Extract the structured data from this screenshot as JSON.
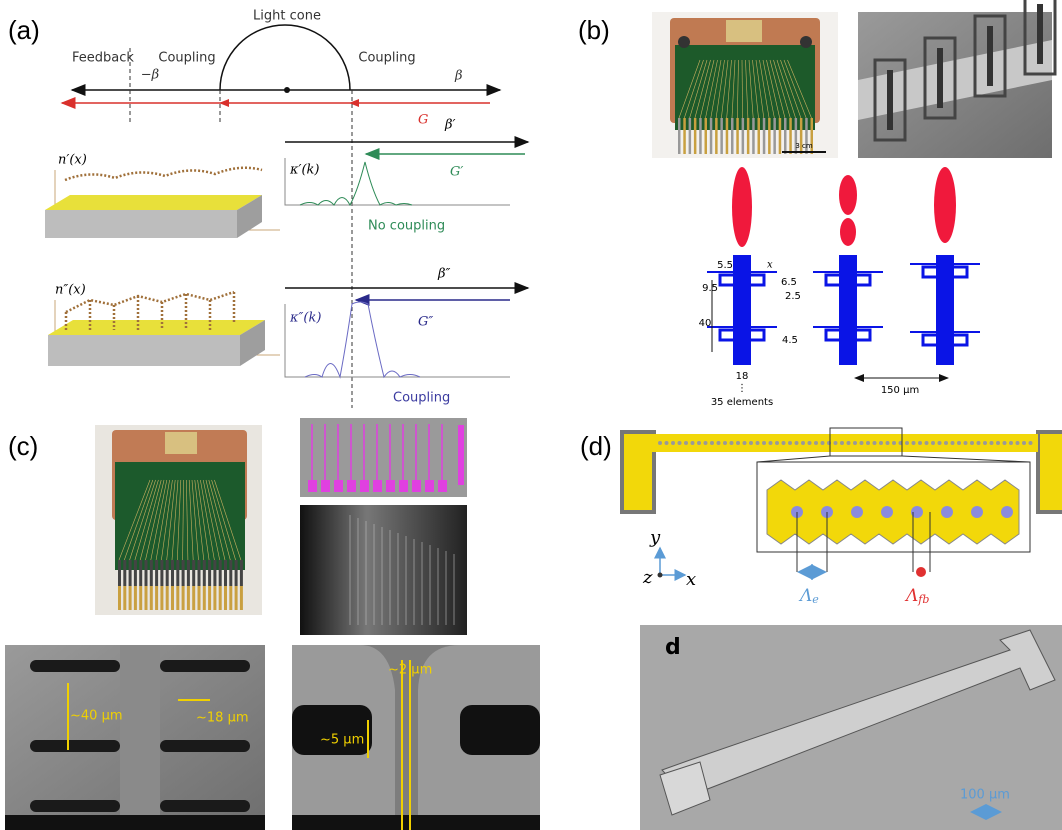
{
  "panels": {
    "a": {
      "label": "(a)",
      "light_cone": "Light cone",
      "feedback": "Feedback",
      "coupling_left": "Coupling",
      "coupling_right": "Coupling",
      "minus_beta": "−β",
      "beta": "β",
      "G": "G",
      "beta1": "β′",
      "n1": "n′(x)",
      "kappa1": "κ′(k)",
      "G1": "G′",
      "no_coupling": "No coupling",
      "n2": "n″(x)",
      "beta2": "β″",
      "kappa2": "κ″(k)",
      "G2": "G″",
      "coupling_bottom": "Coupling"
    },
    "b": {
      "label": "(b)",
      "scale_bar": "3 cm",
      "dim_5_5": "5.5",
      "dim_x": "x",
      "dim_6_5": "6.5",
      "dim_9_5": "9.5",
      "dim_2_5": "2.5",
      "dim_40": "40",
      "dim_4_5": "4.5",
      "dim_18": "18",
      "dots": "⋮",
      "elements": "35 elements",
      "pitch": "150 μm"
    },
    "c": {
      "label": "(c)",
      "width_40": "~40 μm",
      "width_18": "~18 μm",
      "width_2": "~2 μm",
      "width_5": "~5 μm"
    },
    "d": {
      "label": "(d)",
      "axis_y": "y",
      "axis_z": "z",
      "axis_x": "x",
      "lambda_e": {
        "symbol": "Λ",
        "subscript": "e"
      },
      "lambda_fb": {
        "symbol": "Λ",
        "subscript": "fb"
      },
      "sem_label": "d",
      "scale_bar": "100 μm"
    }
  }
}
